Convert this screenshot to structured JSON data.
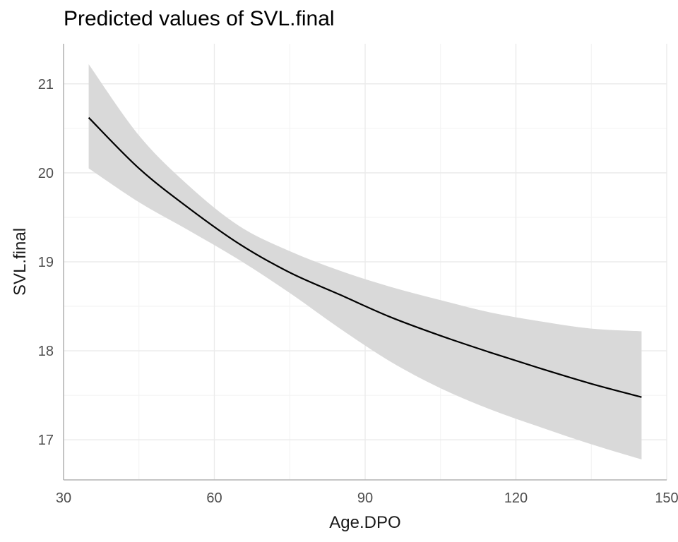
{
  "chart_data": {
    "type": "line",
    "title": "Predicted values of SVL.final",
    "xlabel": "Age.DPO",
    "ylabel": "SVL.final",
    "xlim": [
      30,
      150
    ],
    "ylim": [
      16.55,
      21.45
    ],
    "x_ticks": [
      30,
      60,
      90,
      120,
      150
    ],
    "x_tick_labels": [
      "30",
      "60",
      "90",
      "120",
      "150"
    ],
    "y_ticks": [
      17,
      18,
      19,
      20,
      21
    ],
    "y_tick_labels": [
      "17",
      "18",
      "19",
      "20",
      "21"
    ],
    "grid": true,
    "legend": "none",
    "series": [
      {
        "x": [
          35,
          45,
          55,
          65,
          75,
          85,
          95,
          105,
          115,
          125,
          135,
          145
        ],
        "y": [
          20.62,
          20.05,
          19.6,
          19.2,
          18.88,
          18.63,
          18.38,
          18.17,
          17.98,
          17.8,
          17.63,
          17.48
        ],
        "ci_lower": [
          20.05,
          19.67,
          19.35,
          19.02,
          18.65,
          18.25,
          17.88,
          17.58,
          17.34,
          17.14,
          16.95,
          16.78
        ],
        "ci_upper": [
          21.22,
          20.42,
          19.85,
          19.4,
          19.12,
          18.9,
          18.72,
          18.57,
          18.43,
          18.33,
          18.25,
          18.22
        ]
      }
    ],
    "colors": {
      "line": "#000000",
      "ribbon": "#d9d9d9",
      "grid_major": "#ebebeb",
      "grid_minor": "#f2f2f2",
      "axis": "#b3b3b3"
    }
  }
}
